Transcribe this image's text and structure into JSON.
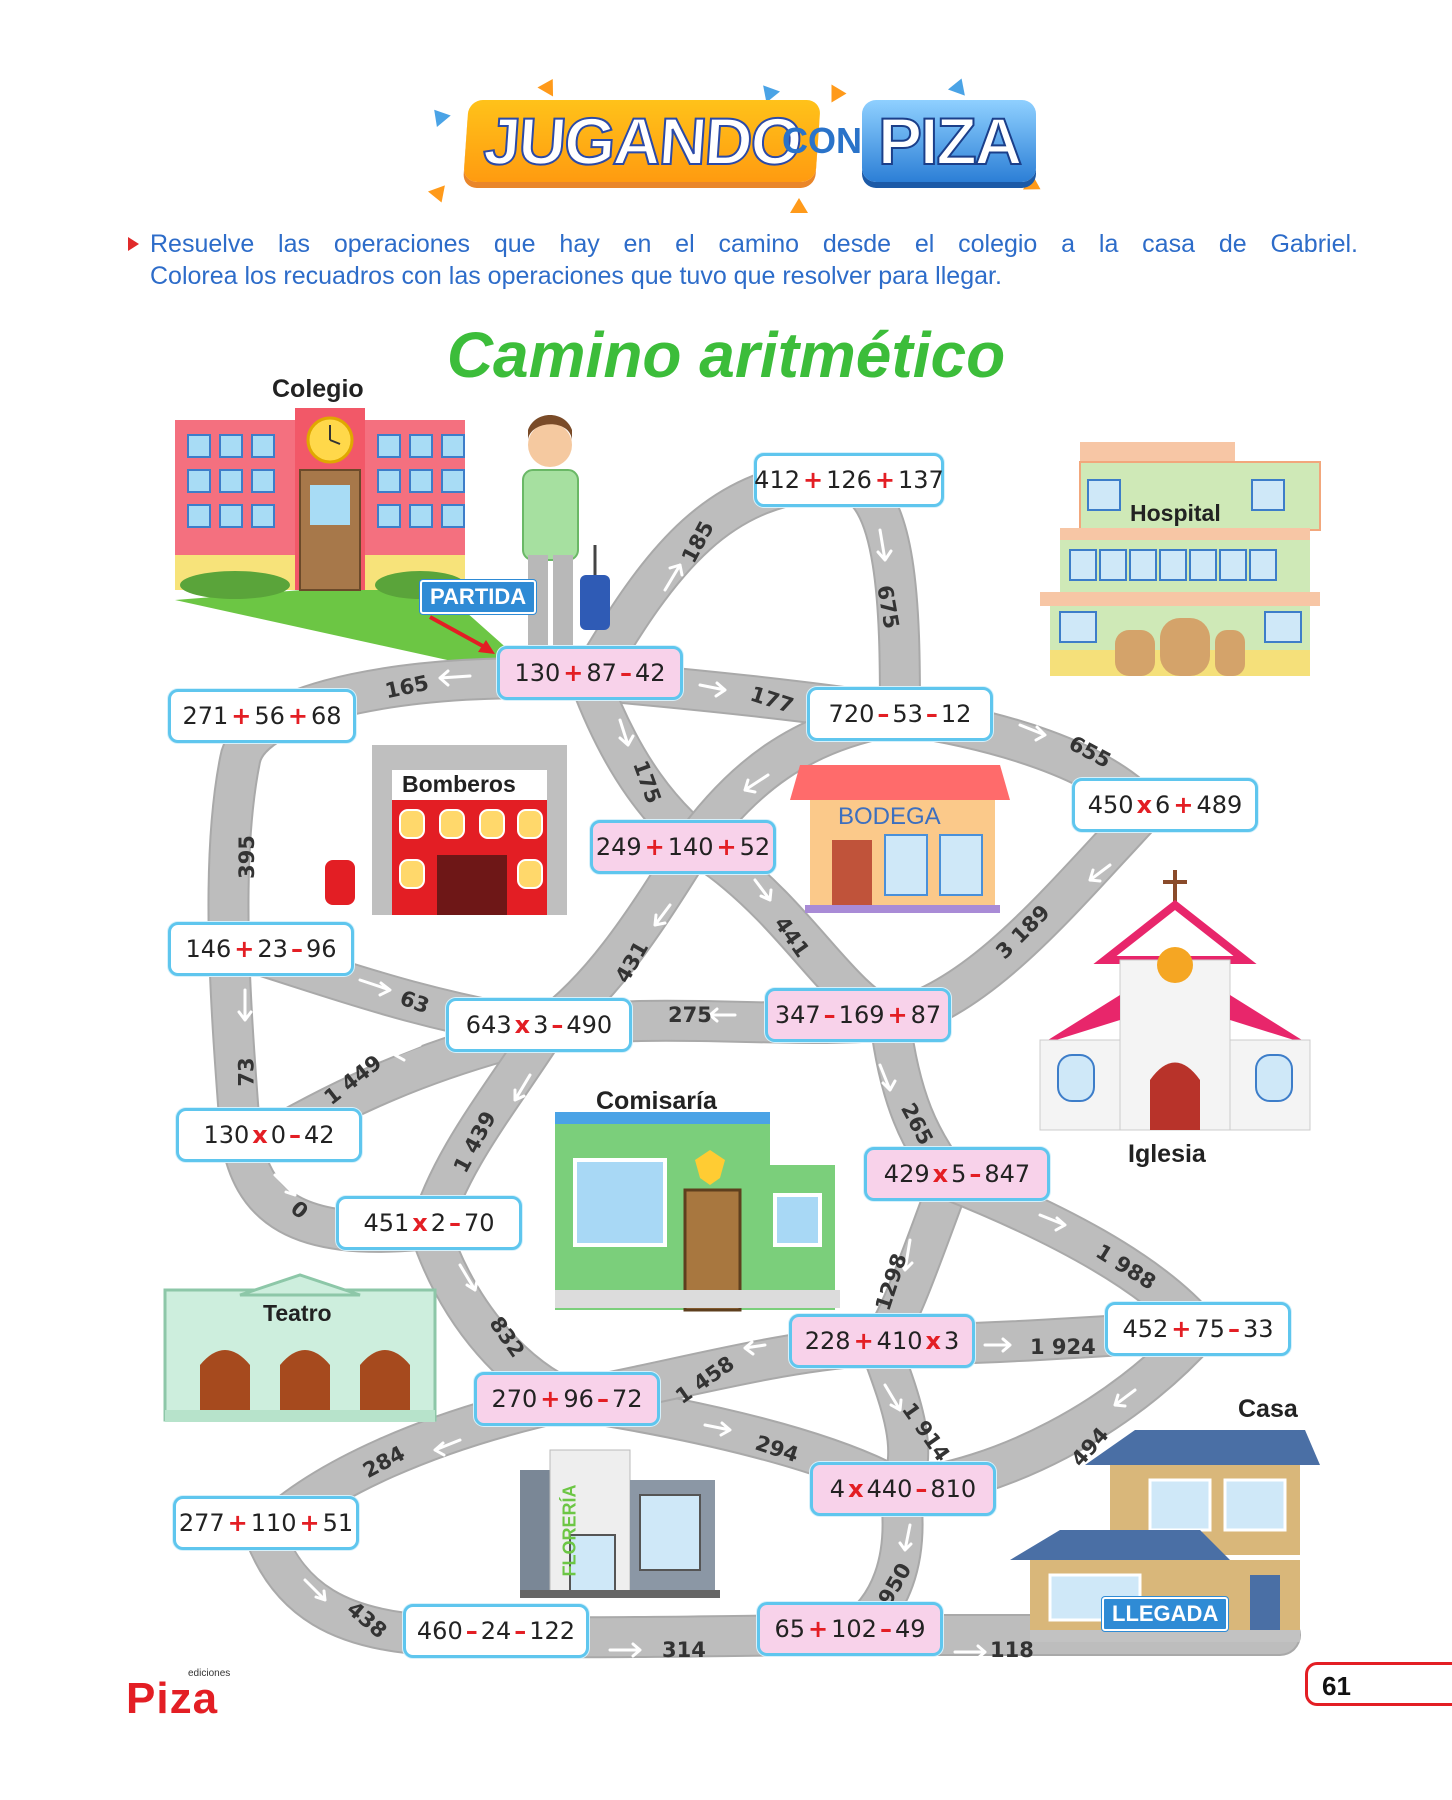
{
  "header": {
    "logo_word_1": "JUGANDO",
    "logo_word_2": "CON",
    "logo_word_3": "PIZA"
  },
  "instructions": {
    "line_1": "Resuelve las operaciones que hay en el camino desde el colegio a la casa de Gabriel.",
    "line_2": "Colorea los recuadros con las operaciones que tuvo que resolver para llegar."
  },
  "title": "Camino aritmético",
  "places": {
    "colegio": "Colegio",
    "hospital": "Hospital",
    "bomberos": "Bomberos",
    "bodega": "BODEGA",
    "iglesia": "Iglesia",
    "comisaria": "Comisaría",
    "teatro": "Teatro",
    "floreria": "FLORERÍA",
    "casa": "Casa"
  },
  "tags": {
    "start": "PARTIDA",
    "end": "LLEGADA"
  },
  "operations": [
    {
      "id": "op1",
      "parts": [
        "412",
        "+",
        "126",
        "+",
        "137"
      ],
      "highlight": false
    },
    {
      "id": "op2",
      "parts": [
        "130",
        "+",
        "87",
        "–",
        "42"
      ],
      "highlight": true
    },
    {
      "id": "op3",
      "parts": [
        "271",
        "+",
        "56",
        "+",
        "68"
      ],
      "highlight": false
    },
    {
      "id": "op4",
      "parts": [
        "720",
        "–",
        "53",
        "–",
        "12"
      ],
      "highlight": false
    },
    {
      "id": "op5",
      "parts": [
        "450",
        "x",
        "6",
        "+",
        "489"
      ],
      "highlight": false
    },
    {
      "id": "op6",
      "parts": [
        "249",
        "+",
        "140",
        "+",
        "52"
      ],
      "highlight": true
    },
    {
      "id": "op7",
      "parts": [
        "146",
        "+",
        "23",
        "–",
        "96"
      ],
      "highlight": false
    },
    {
      "id": "op8",
      "parts": [
        "643",
        "x",
        "3",
        "–",
        "490"
      ],
      "highlight": false
    },
    {
      "id": "op9",
      "parts": [
        "347",
        "–",
        "169",
        "+",
        "87"
      ],
      "highlight": true
    },
    {
      "id": "op10",
      "parts": [
        "130",
        "x",
        "0",
        "–",
        "42"
      ],
      "highlight": false
    },
    {
      "id": "op11",
      "parts": [
        "429",
        "x",
        "5",
        "–",
        "847"
      ],
      "highlight": true
    },
    {
      "id": "op12",
      "parts": [
        "451",
        "x",
        "2",
        "–",
        "70"
      ],
      "highlight": false
    },
    {
      "id": "op13",
      "parts": [
        "228",
        "+",
        "410",
        "x",
        "3"
      ],
      "highlight": true
    },
    {
      "id": "op14",
      "parts": [
        "452",
        "+",
        "75",
        "–",
        "33"
      ],
      "highlight": false
    },
    {
      "id": "op15",
      "parts": [
        "270",
        "+",
        "96",
        "–",
        "72"
      ],
      "highlight": true
    },
    {
      "id": "op16",
      "parts": [
        "4",
        "x",
        "440",
        "–",
        "810"
      ],
      "highlight": true
    },
    {
      "id": "op17",
      "parts": [
        "277",
        "+",
        "110",
        "+",
        "51"
      ],
      "highlight": false
    },
    {
      "id": "op18",
      "parts": [
        "460",
        "–",
        "24",
        "–",
        "122"
      ],
      "highlight": false
    },
    {
      "id": "op19",
      "parts": [
        "65",
        "+",
        "102",
        "–",
        "49"
      ],
      "highlight": true
    }
  ],
  "road_numbers": [
    "185",
    "675",
    "165",
    "177",
    "655",
    "175",
    "395",
    "3 189",
    "431",
    "441",
    "63",
    "275",
    "1 449",
    "73",
    "1 439",
    "265",
    "0",
    "1 988",
    "1298",
    "832",
    "1 924",
    "1 458",
    "1 914",
    "494",
    "294",
    "284",
    "950",
    "438",
    "314",
    "118"
  ],
  "footer": {
    "brand_small": "ediciones",
    "brand_name": "Piza",
    "page_number": "61"
  }
}
